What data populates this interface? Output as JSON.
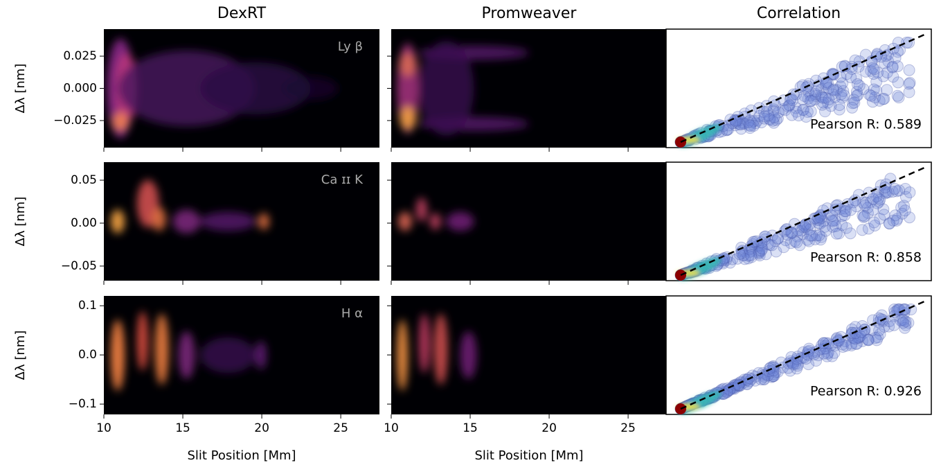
{
  "chart_data": {
    "type": "heatmap",
    "columns": [
      "DexRT",
      "Promweaver",
      "Correlation"
    ],
    "xlabel": "Slit Position [Mm]",
    "xlim": [
      10,
      27.45
    ],
    "xticks": [
      10,
      15,
      20,
      25
    ],
    "rows": [
      {
        "line": "Ly β",
        "ylabel": "Δλ [nm]",
        "ylim": [
          -0.046,
          0.046
        ],
        "yticks": [
          {
            "value": 0.025,
            "label": "0.025"
          },
          {
            "value": 0,
            "label": "0.000"
          },
          {
            "value": -0.025,
            "label": "−0.025"
          }
        ],
        "pearson": "Pearson R: 0.589"
      },
      {
        "line": "Ca ɪɪ K",
        "ylabel": "Δλ [nm]",
        "ylim": [
          -0.067,
          0.071
        ],
        "yticks": [
          {
            "value": 0.05,
            "label": "0.05"
          },
          {
            "value": 0,
            "label": "0.00"
          },
          {
            "value": -0.05,
            "label": "−0.05"
          }
        ],
        "pearson": "Pearson R: 0.858"
      },
      {
        "line": "H α",
        "ylabel": "Δλ [nm]",
        "ylim": [
          -0.121,
          0.12
        ],
        "yticks": [
          {
            "value": 0.1,
            "label": "0.1"
          },
          {
            "value": 0,
            "label": "0.0"
          },
          {
            "value": -0.1,
            "label": "−0.1"
          }
        ],
        "pearson": "Pearson R: 0.926"
      }
    ]
  }
}
